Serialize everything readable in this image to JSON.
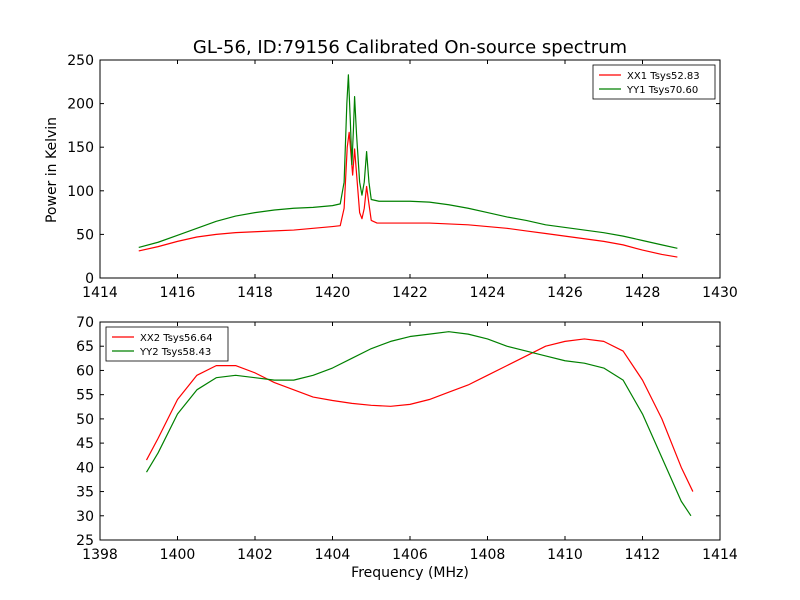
{
  "figure": {
    "title": "GL-56, ID:79156 Calibrated On-source spectrum",
    "xlabel": "Frequency (MHz)",
    "ylabel": "Power in Kelvin"
  },
  "chart_data": [
    {
      "type": "line",
      "title": "GL-56, ID:79156 Calibrated On-source spectrum",
      "xlabel": "",
      "ylabel": "Power in Kelvin",
      "xlim": [
        1414,
        1430
      ],
      "ylim": [
        0,
        250
      ],
      "xticks": [
        "1414",
        "1416",
        "1418",
        "1420",
        "1422",
        "1424",
        "1426",
        "1428",
        "1430"
      ],
      "yticks": [
        "0",
        "50",
        "100",
        "150",
        "200",
        "250"
      ],
      "legend_position": "top-right",
      "grid": false,
      "series": [
        {
          "name": "XX1 Tsys52.83",
          "color": "#ff0000",
          "points": [
            [
              1415.0,
              31
            ],
            [
              1415.5,
              36
            ],
            [
              1416.0,
              42
            ],
            [
              1416.5,
              47
            ],
            [
              1417.0,
              50
            ],
            [
              1417.5,
              52
            ],
            [
              1418.0,
              53
            ],
            [
              1418.5,
              54
            ],
            [
              1419.0,
              55
            ],
            [
              1419.5,
              57
            ],
            [
              1420.0,
              59
            ],
            [
              1420.2,
              60
            ],
            [
              1420.3,
              80
            ],
            [
              1420.38,
              150
            ],
            [
              1420.43,
              167
            ],
            [
              1420.48,
              140
            ],
            [
              1420.52,
              118
            ],
            [
              1420.57,
              148
            ],
            [
              1420.62,
              120
            ],
            [
              1420.7,
              75
            ],
            [
              1420.76,
              68
            ],
            [
              1420.82,
              80
            ],
            [
              1420.88,
              105
            ],
            [
              1420.94,
              85
            ],
            [
              1421.0,
              66
            ],
            [
              1421.15,
              63
            ],
            [
              1421.5,
              63
            ],
            [
              1422.0,
              63
            ],
            [
              1422.5,
              63
            ],
            [
              1423.0,
              62
            ],
            [
              1423.5,
              61
            ],
            [
              1424.0,
              59
            ],
            [
              1424.5,
              57
            ],
            [
              1425.0,
              54
            ],
            [
              1425.5,
              51
            ],
            [
              1426.0,
              48
            ],
            [
              1426.5,
              45
            ],
            [
              1427.0,
              42
            ],
            [
              1427.5,
              38
            ],
            [
              1428.0,
              32
            ],
            [
              1428.5,
              27
            ],
            [
              1428.9,
              24
            ]
          ]
        },
        {
          "name": "YY1 Tsys70.60",
          "color": "#008000",
          "points": [
            [
              1415.0,
              35
            ],
            [
              1415.5,
              41
            ],
            [
              1416.0,
              49
            ],
            [
              1416.5,
              57
            ],
            [
              1417.0,
              65
            ],
            [
              1417.5,
              71
            ],
            [
              1418.0,
              75
            ],
            [
              1418.5,
              78
            ],
            [
              1419.0,
              80
            ],
            [
              1419.5,
              81
            ],
            [
              1420.0,
              83
            ],
            [
              1420.2,
              85
            ],
            [
              1420.3,
              110
            ],
            [
              1420.37,
              200
            ],
            [
              1420.41,
              233
            ],
            [
              1420.46,
              180
            ],
            [
              1420.5,
              130
            ],
            [
              1420.54,
              170
            ],
            [
              1420.57,
              208
            ],
            [
              1420.62,
              165
            ],
            [
              1420.7,
              110
            ],
            [
              1420.76,
              95
            ],
            [
              1420.82,
              110
            ],
            [
              1420.88,
              145
            ],
            [
              1420.94,
              110
            ],
            [
              1421.0,
              90
            ],
            [
              1421.2,
              88
            ],
            [
              1421.5,
              88
            ],
            [
              1422.0,
              88
            ],
            [
              1422.5,
              87
            ],
            [
              1423.0,
              84
            ],
            [
              1423.5,
              80
            ],
            [
              1424.0,
              75
            ],
            [
              1424.5,
              70
            ],
            [
              1425.0,
              66
            ],
            [
              1425.5,
              61
            ],
            [
              1426.0,
              58
            ],
            [
              1426.5,
              55
            ],
            [
              1427.0,
              52
            ],
            [
              1427.5,
              48
            ],
            [
              1428.0,
              43
            ],
            [
              1428.5,
              38
            ],
            [
              1428.9,
              34
            ]
          ]
        }
      ]
    },
    {
      "type": "line",
      "title": "",
      "xlabel": "Frequency (MHz)",
      "ylabel": "",
      "xlim": [
        1398,
        1414
      ],
      "ylim": [
        25,
        70
      ],
      "xticks": [
        "1398",
        "1400",
        "1402",
        "1404",
        "1406",
        "1408",
        "1410",
        "1412",
        "1414"
      ],
      "yticks": [
        "25",
        "30",
        "35",
        "40",
        "45",
        "50",
        "55",
        "60",
        "65",
        "70"
      ],
      "legend_position": "top-left",
      "grid": false,
      "series": [
        {
          "name": "XX2 Tsys56.64",
          "color": "#ff0000",
          "points": [
            [
              1399.2,
              41.5
            ],
            [
              1399.5,
              46
            ],
            [
              1400.0,
              54
            ],
            [
              1400.5,
              59
            ],
            [
              1401.0,
              61
            ],
            [
              1401.5,
              61
            ],
            [
              1402.0,
              59.5
            ],
            [
              1402.5,
              57.5
            ],
            [
              1403.0,
              56
            ],
            [
              1403.5,
              54.5
            ],
            [
              1404.0,
              53.8
            ],
            [
              1404.5,
              53.2
            ],
            [
              1405.0,
              52.8
            ],
            [
              1405.5,
              52.6
            ],
            [
              1406.0,
              53
            ],
            [
              1406.5,
              54
            ],
            [
              1407.0,
              55.5
            ],
            [
              1407.5,
              57
            ],
            [
              1408.0,
              59
            ],
            [
              1408.5,
              61
            ],
            [
              1409.0,
              63
            ],
            [
              1409.5,
              65
            ],
            [
              1410.0,
              66
            ],
            [
              1410.5,
              66.5
            ],
            [
              1411.0,
              66
            ],
            [
              1411.5,
              64
            ],
            [
              1412.0,
              58
            ],
            [
              1412.5,
              50
            ],
            [
              1413.0,
              40
            ],
            [
              1413.3,
              35
            ]
          ]
        },
        {
          "name": "YY2 Tsys58.43",
          "color": "#008000",
          "points": [
            [
              1399.2,
              39
            ],
            [
              1399.5,
              43
            ],
            [
              1400.0,
              51
            ],
            [
              1400.5,
              56
            ],
            [
              1401.0,
              58.5
            ],
            [
              1401.5,
              59
            ],
            [
              1402.0,
              58.5
            ],
            [
              1402.5,
              58
            ],
            [
              1403.0,
              58
            ],
            [
              1403.5,
              59
            ],
            [
              1404.0,
              60.5
            ],
            [
              1404.5,
              62.5
            ],
            [
              1405.0,
              64.5
            ],
            [
              1405.5,
              66
            ],
            [
              1406.0,
              67
            ],
            [
              1406.5,
              67.5
            ],
            [
              1407.0,
              68
            ],
            [
              1407.5,
              67.5
            ],
            [
              1408.0,
              66.5
            ],
            [
              1408.5,
              65
            ],
            [
              1409.0,
              64
            ],
            [
              1409.5,
              63
            ],
            [
              1410.0,
              62
            ],
            [
              1410.5,
              61.5
            ],
            [
              1411.0,
              60.5
            ],
            [
              1411.5,
              58
            ],
            [
              1412.0,
              51
            ],
            [
              1412.5,
              42
            ],
            [
              1413.0,
              33
            ],
            [
              1413.25,
              30
            ]
          ]
        }
      ]
    }
  ]
}
